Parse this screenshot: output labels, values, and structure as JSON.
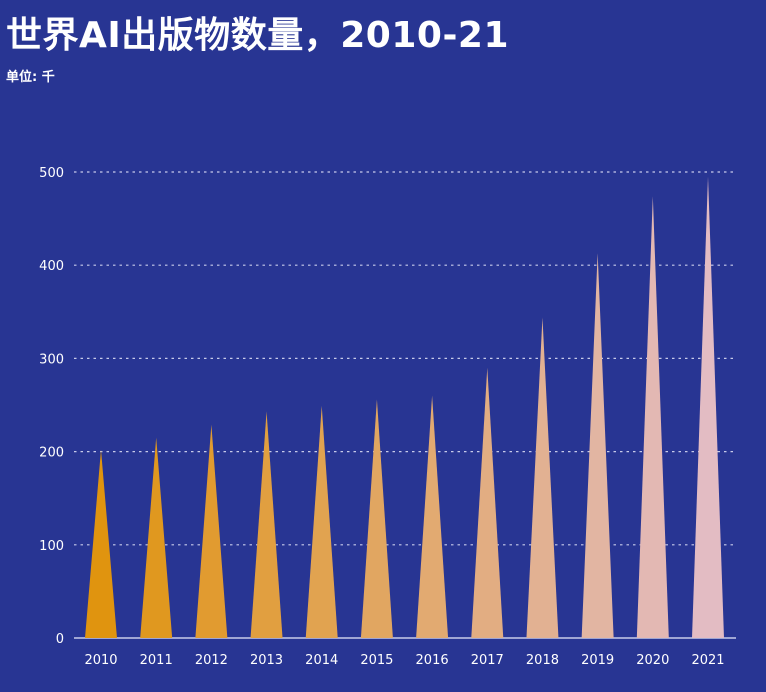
{
  "chart_data": {
    "type": "bar",
    "title": "世界AI出版物数量，2010-21",
    "subtitle": "单位: 千",
    "categories": [
      "2010",
      "2011",
      "2012",
      "2013",
      "2014",
      "2015",
      "2016",
      "2017",
      "2018",
      "2019",
      "2020",
      "2021"
    ],
    "values": [
      202,
      215,
      229,
      243,
      249,
      256,
      260,
      290,
      344,
      413,
      474,
      495
    ],
    "ylim": [
      0,
      500
    ],
    "yticks": [
      0,
      100,
      200,
      300,
      400,
      500
    ],
    "grid": true,
    "colors": {
      "background": "#283593",
      "bar_start": "#E0940F",
      "bar_end": "#E3BCC3",
      "grid": "#C8CBEA",
      "axis": "#C8CBEA"
    }
  }
}
